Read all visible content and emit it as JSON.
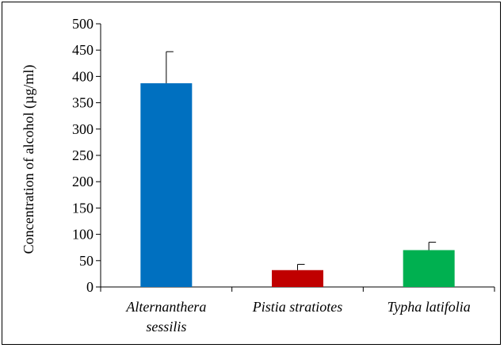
{
  "chart_data": {
    "type": "bar",
    "categories": [
      [
        "Alternanthera",
        "sessilis"
      ],
      [
        "Pistia stratiotes"
      ],
      [
        "Typha latifolia"
      ]
    ],
    "values": [
      387,
      32,
      70
    ],
    "errors": [
      60,
      11,
      15
    ],
    "colors": [
      "#0070c0",
      "#c00000",
      "#00b050"
    ],
    "ylabel": "Concentration of alcohol  (µg/ml)",
    "xlabel": "",
    "title": "",
    "ylim": [
      0,
      500
    ],
    "yticks": [
      0,
      50,
      100,
      150,
      200,
      250,
      300,
      350,
      400,
      450,
      500
    ],
    "grid": false,
    "legend": "none"
  }
}
